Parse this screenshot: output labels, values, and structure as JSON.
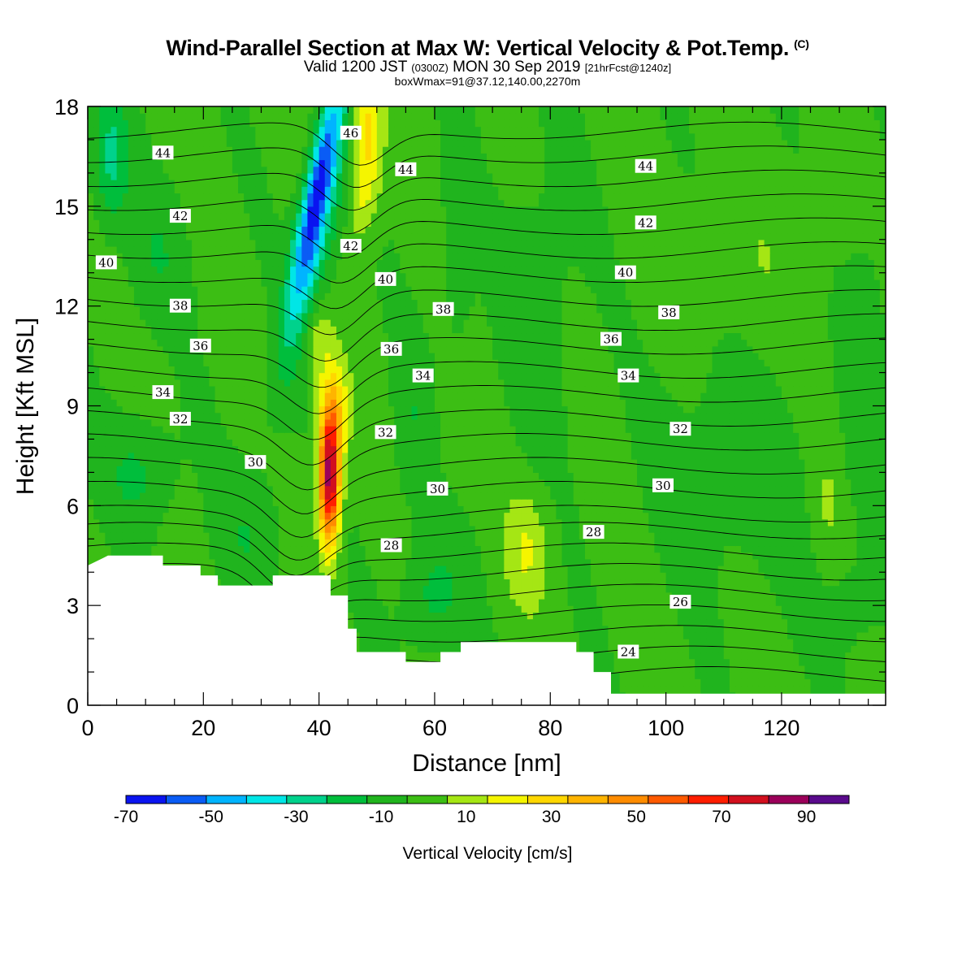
{
  "chart_data": {
    "type": "heatmap",
    "title": "Wind-Parallel Section at Max W: Vertical Velocity & Pot.Temp.",
    "title_flag": "(C)",
    "subtitle_main_a": "Valid 1200 JST",
    "subtitle_small_a": "(0300Z)",
    "subtitle_main_b": "MON 30 Sep 2019",
    "subtitle_small_b": "[21hrFcst@1240z]",
    "subtitle2": "boxWmax=91@37.12,140.00,2270m",
    "xlabel": "Distance [nm]",
    "ylabel": "Height [Kft MSL]",
    "xlim": [
      0,
      138
    ],
    "ylim": [
      0,
      18
    ],
    "x_ticks": [
      "0",
      "20",
      "40",
      "60",
      "80",
      "100",
      "120"
    ],
    "x_tick_values": [
      0,
      20,
      40,
      60,
      80,
      100,
      120
    ],
    "y_ticks": [
      "0",
      "3",
      "6",
      "9",
      "12",
      "15",
      "18"
    ],
    "y_tick_values": [
      0,
      3,
      6,
      9,
      12,
      15,
      18
    ],
    "colorbar": {
      "title": "Vertical Velocity [cm/s]",
      "bounds": [
        -70,
        -60,
        -50,
        -40,
        -30,
        -20,
        -10,
        0,
        10,
        20,
        30,
        40,
        50,
        60,
        70,
        80,
        90,
        100
      ],
      "colors": [
        "#0a14f0",
        "#0a5cf5",
        "#00b4ff",
        "#00e6e6",
        "#00d28c",
        "#00be3c",
        "#20b41e",
        "#3cbe14",
        "#a5e614",
        "#f5f500",
        "#ffd700",
        "#ffb400",
        "#ff8c00",
        "#ff5a00",
        "#ff1e00",
        "#d20f1e",
        "#9b005a",
        "#5a0a8c"
      ],
      "tick_labels": [
        "-70",
        "-50",
        "-30",
        "-10",
        "10",
        "30",
        "50",
        "70",
        "90"
      ],
      "tick_values": [
        -70,
        -50,
        -30,
        -10,
        10,
        30,
        50,
        70,
        90
      ]
    },
    "velocity_features": [
      {
        "kind": "updraft",
        "max_cm_s": 91,
        "center_x_nm": 42,
        "center_height_kft": 6.5
      },
      {
        "kind": "downdraft",
        "min_cm_s": -70,
        "center_x_nm": 42,
        "center_height_kft": 16.5
      },
      {
        "kind": "updraft",
        "max_cm_s": 20,
        "center_x_nm": 76,
        "center_height_kft": 4.5
      }
    ],
    "theta_contour_labels": [
      {
        "value": "46",
        "x": 45.5,
        "y": 17.2
      },
      {
        "value": "44",
        "x": 13,
        "y": 16.6
      },
      {
        "value": "44",
        "x": 55,
        "y": 16.1
      },
      {
        "value": "44",
        "x": 96.5,
        "y": 16.2
      },
      {
        "value": "42",
        "x": 16,
        "y": 14.7
      },
      {
        "value": "42",
        "x": 45.5,
        "y": 13.8
      },
      {
        "value": "42",
        "x": 96.5,
        "y": 14.5
      },
      {
        "value": "40",
        "x": 3.2,
        "y": 13.3
      },
      {
        "value": "40",
        "x": 51.5,
        "y": 12.8
      },
      {
        "value": "40",
        "x": 93,
        "y": 13.0
      },
      {
        "value": "38",
        "x": 16,
        "y": 12.0
      },
      {
        "value": "38",
        "x": 61.5,
        "y": 11.9
      },
      {
        "value": "38",
        "x": 100.5,
        "y": 11.8
      },
      {
        "value": "36",
        "x": 19.5,
        "y": 10.8
      },
      {
        "value": "36",
        "x": 52.5,
        "y": 10.7
      },
      {
        "value": "36",
        "x": 90.5,
        "y": 11.0
      },
      {
        "value": "34",
        "x": 13,
        "y": 9.4
      },
      {
        "value": "34",
        "x": 58,
        "y": 9.9
      },
      {
        "value": "34",
        "x": 93.5,
        "y": 9.9
      },
      {
        "value": "32",
        "x": 16,
        "y": 8.6
      },
      {
        "value": "32",
        "x": 51.5,
        "y": 8.2
      },
      {
        "value": "32",
        "x": 102.5,
        "y": 8.3
      },
      {
        "value": "30",
        "x": 29,
        "y": 7.3
      },
      {
        "value": "30",
        "x": 60.5,
        "y": 6.5
      },
      {
        "value": "30",
        "x": 99.5,
        "y": 6.6
      },
      {
        "value": "28",
        "x": 52.5,
        "y": 4.8
      },
      {
        "value": "28",
        "x": 87.5,
        "y": 5.2
      },
      {
        "value": "26",
        "x": 102.5,
        "y": 3.1
      },
      {
        "value": "24",
        "x": 93.5,
        "y": 1.6
      }
    ],
    "terrain_height_kft": [
      [
        0,
        4.2
      ],
      [
        3.5,
        4.5
      ],
      [
        13,
        4.5
      ],
      [
        13,
        4.2
      ],
      [
        19.5,
        4.2
      ],
      [
        19.5,
        3.9
      ],
      [
        22.5,
        3.9
      ],
      [
        22.5,
        3.6
      ],
      [
        32,
        3.6
      ],
      [
        32,
        3.9
      ],
      [
        42,
        3.9
      ],
      [
        42,
        3.3
      ],
      [
        45,
        3.3
      ],
      [
        45,
        2.3
      ],
      [
        46.5,
        2.3
      ],
      [
        46.5,
        1.6
      ],
      [
        55,
        1.6
      ],
      [
        55,
        1.3
      ],
      [
        61,
        1.3
      ],
      [
        61,
        1.6
      ],
      [
        64.5,
        1.6
      ],
      [
        64.5,
        1.9
      ],
      [
        84.5,
        1.9
      ],
      [
        84.5,
        1.6
      ],
      [
        87.5,
        1.6
      ],
      [
        87.5,
        1.0
      ],
      [
        90.5,
        1.0
      ],
      [
        90.5,
        0.35
      ],
      [
        138,
        0.35
      ]
    ]
  }
}
